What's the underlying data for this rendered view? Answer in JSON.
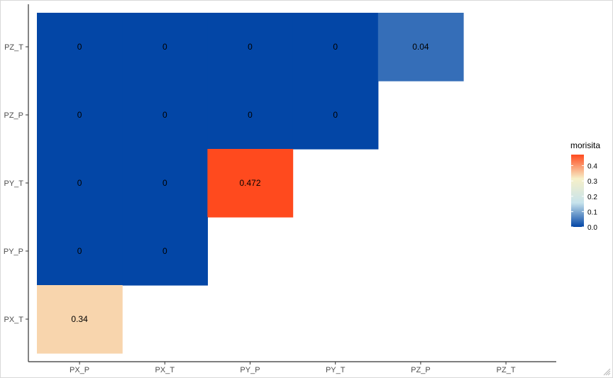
{
  "chart_data": {
    "type": "heatmap",
    "x_categories": [
      "PX_P",
      "PX_T",
      "PY_P",
      "PY_T",
      "PZ_P",
      "PZ_T"
    ],
    "y_categories": [
      "PX_T",
      "PY_P",
      "PY_T",
      "PZ_P",
      "PZ_T"
    ],
    "cells": [
      {
        "x": "PX_P",
        "y": "PZ_T",
        "value": 0,
        "label": "0"
      },
      {
        "x": "PX_T",
        "y": "PZ_T",
        "value": 0,
        "label": "0"
      },
      {
        "x": "PY_P",
        "y": "PZ_T",
        "value": 0,
        "label": "0"
      },
      {
        "x": "PY_T",
        "y": "PZ_T",
        "value": 0,
        "label": "0"
      },
      {
        "x": "PZ_P",
        "y": "PZ_T",
        "value": 0.04,
        "label": "0.04"
      },
      {
        "x": "PX_P",
        "y": "PZ_P",
        "value": 0,
        "label": "0"
      },
      {
        "x": "PX_T",
        "y": "PZ_P",
        "value": 0,
        "label": "0"
      },
      {
        "x": "PY_P",
        "y": "PZ_P",
        "value": 0,
        "label": "0"
      },
      {
        "x": "PY_T",
        "y": "PZ_P",
        "value": 0,
        "label": "0"
      },
      {
        "x": "PX_P",
        "y": "PY_T",
        "value": 0,
        "label": "0"
      },
      {
        "x": "PX_T",
        "y": "PY_T",
        "value": 0,
        "label": "0"
      },
      {
        "x": "PY_P",
        "y": "PY_T",
        "value": 0.472,
        "label": "0.472"
      },
      {
        "x": "PX_P",
        "y": "PY_P",
        "value": 0,
        "label": "0"
      },
      {
        "x": "PX_T",
        "y": "PY_P",
        "value": 0,
        "label": "0"
      },
      {
        "x": "PX_P",
        "y": "PX_T",
        "value": 0.34,
        "label": "0.34"
      }
    ],
    "color_scale": {
      "stops": [
        "#0346A6",
        "#C7E3EC",
        "#F7F0C8",
        "#FF4A1E"
      ],
      "range": [
        0,
        0.472
      ]
    },
    "legend": {
      "title": "morisita",
      "ticks": [
        0.0,
        0.1,
        0.2,
        0.3,
        0.4
      ],
      "tick_labels": [
        "0.0",
        "0.1",
        "0.2",
        "0.3",
        "0.4"
      ],
      "placement": "right"
    },
    "title": "",
    "xlabel": "",
    "ylabel": "",
    "grid": false
  }
}
